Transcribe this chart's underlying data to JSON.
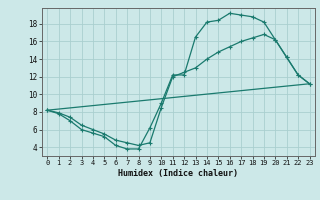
{
  "xlabel": "Humidex (Indice chaleur)",
  "bg_color": "#cce8e8",
  "line_color": "#1a7a6e",
  "grid_color": "#aacfcf",
  "xlim": [
    -0.5,
    23.5
  ],
  "ylim": [
    3.0,
    19.8
  ],
  "xticks": [
    0,
    1,
    2,
    3,
    4,
    5,
    6,
    7,
    8,
    9,
    10,
    11,
    12,
    13,
    14,
    15,
    16,
    17,
    18,
    19,
    20,
    21,
    22,
    23
  ],
  "yticks": [
    4,
    6,
    8,
    10,
    12,
    14,
    16,
    18
  ],
  "line1_x": [
    0,
    1,
    2,
    3,
    4,
    5,
    6,
    7,
    8,
    9,
    10,
    11,
    12,
    13,
    14,
    15,
    16,
    17,
    18,
    19,
    20,
    21,
    22,
    23
  ],
  "line1_y": [
    8.2,
    7.8,
    7.0,
    6.0,
    5.6,
    5.2,
    4.2,
    3.8,
    3.8,
    6.2,
    9.0,
    12.2,
    12.2,
    16.5,
    18.2,
    18.4,
    19.2,
    19.0,
    18.8,
    18.2,
    16.2,
    14.2,
    12.2,
    11.2
  ],
  "line2_x": [
    0,
    1,
    2,
    3,
    4,
    5,
    6,
    7,
    8,
    9,
    10,
    11,
    12,
    13,
    14,
    15,
    16,
    17,
    18,
    19,
    20,
    21,
    22,
    23
  ],
  "line2_y": [
    8.2,
    7.9,
    7.4,
    6.5,
    6.0,
    5.5,
    4.8,
    4.5,
    4.2,
    4.5,
    8.5,
    12.0,
    12.5,
    13.0,
    14.0,
    14.8,
    15.4,
    16.0,
    16.4,
    16.8,
    16.2,
    14.2,
    12.2,
    11.2
  ],
  "line3_x": [
    0,
    23
  ],
  "line3_y": [
    8.2,
    11.2
  ]
}
